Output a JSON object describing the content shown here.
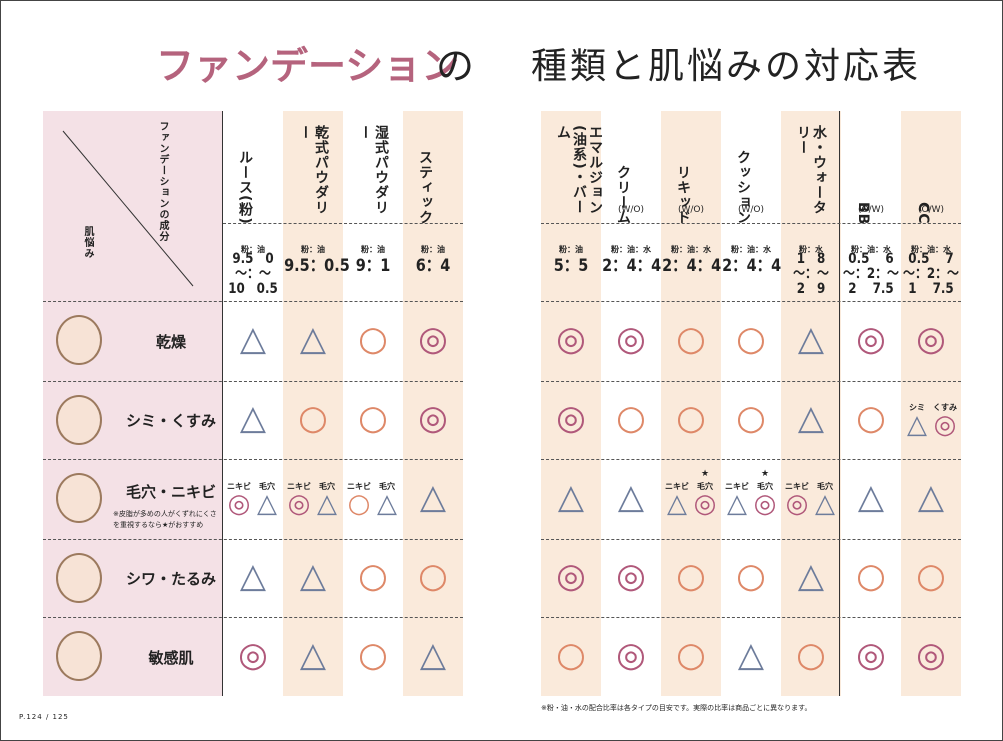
{
  "title": {
    "main": "ファンデーション",
    "particle": "の",
    "rest": "種類と肌悩みの対応表"
  },
  "corner": {
    "column_label": "ファンデーションの成分",
    "row_label": "肌悩み"
  },
  "mark_colors": {
    "△": "#6d7c9b",
    "○": "#de8868",
    "◎": "#b0587a"
  },
  "columns": [
    {
      "name": "ルース(粉)",
      "ratio_label": "粉：油",
      "ratio": [
        "9.5　0",
        "〜：〜",
        "10　0.5"
      ]
    },
    {
      "name": "乾式パウダリー",
      "ratio_label": "粉：油",
      "ratio": [
        "9.5：0.5"
      ],
      "shade": true
    },
    {
      "name": "湿式パウダリー",
      "ratio_label": "粉：油",
      "ratio": [
        "9：1"
      ]
    },
    {
      "name": "スティック",
      "ratio_label": "粉：油",
      "ratio": [
        "6：4"
      ],
      "shade": true
    },
    {
      "name": "エマルジョン(油系)・バーム",
      "ratio_label": "粉：油",
      "ratio": [
        "5：5"
      ],
      "shade": true
    },
    {
      "name": "クリーム",
      "sub": "(W/O)",
      "ratio_label": "粉：油：水",
      "ratio": [
        "2：4：4"
      ]
    },
    {
      "name": "リキッド",
      "sub": "(W/O)",
      "ratio_label": "粉：油：水",
      "ratio": [
        "2：4：4"
      ],
      "shade": true
    },
    {
      "name": "クッション",
      "sub": "(W/O)",
      "ratio_label": "粉：油：水",
      "ratio": [
        "2：4：4"
      ]
    },
    {
      "name": "水・ウォータリー",
      "ratio_label": "粉：水",
      "ratio": [
        "1　8",
        "〜：〜",
        "2　9"
      ],
      "shade": true
    },
    {
      "name": "BB",
      "sub": "(O/W)",
      "ratio_label": "粉：油：水",
      "ratio": [
        "0.5　 6",
        "〜：2：〜",
        "2　 7.5"
      ]
    },
    {
      "name": "CC",
      "sub": "(O/W)",
      "ratio_label": "粉：油：水",
      "ratio": [
        "0.5　 7",
        "〜：2：〜",
        "1　 7.5"
      ],
      "shade": true
    }
  ],
  "rows": [
    {
      "name": "乾燥",
      "cells": [
        "△",
        "△",
        "○",
        "◎",
        "◎",
        "◎",
        "○",
        "○",
        "△",
        "◎",
        "◎"
      ]
    },
    {
      "name": "シミ・くすみ",
      "cells": [
        "△",
        "○",
        "○",
        "◎",
        "◎",
        "○",
        "○",
        "○",
        "△",
        "○",
        [
          {
            "label": "シミ",
            "mark": "△"
          },
          {
            "label": "くすみ",
            "mark": "◎"
          }
        ]
      ]
    },
    {
      "name": "毛穴・ニキビ",
      "note": "※皮脂が多めの人がくずれにくさを重視するなら★がおすすめ",
      "cells": [
        [
          {
            "label": "ニキビ",
            "mark": "◎"
          },
          {
            "label": "毛穴",
            "mark": "△"
          }
        ],
        [
          {
            "label": "ニキビ",
            "mark": "◎"
          },
          {
            "label": "毛穴",
            "mark": "△"
          }
        ],
        [
          {
            "label": "ニキビ",
            "mark": "○"
          },
          {
            "label": "毛穴",
            "mark": "△"
          }
        ],
        "△",
        "△",
        "△",
        [
          {
            "label": "ニキビ",
            "mark": "△"
          },
          {
            "label": "毛穴",
            "mark": "◎",
            "star": "★"
          }
        ],
        [
          {
            "label": "ニキビ",
            "mark": "△"
          },
          {
            "label": "毛穴",
            "mark": "◎",
            "star": "★"
          }
        ],
        [
          {
            "label": "ニキビ",
            "mark": "◎"
          },
          {
            "label": "毛穴",
            "mark": "△"
          }
        ],
        "△",
        "△"
      ]
    },
    {
      "name": "シワ・たるみ",
      "cells": [
        "△",
        "△",
        "○",
        "○",
        "◎",
        "◎",
        "○",
        "○",
        "△",
        "○",
        "○"
      ]
    },
    {
      "name": "敏感肌",
      "cells": [
        "◎",
        "△",
        "○",
        "△",
        "○",
        "◎",
        "○",
        "△",
        "○",
        "◎",
        "◎"
      ]
    }
  ],
  "footnote": "※粉・油・水の配合比率は各タイプの目安です。実際の比率は商品ごとに異なります。",
  "page": "P.124 / 125"
}
